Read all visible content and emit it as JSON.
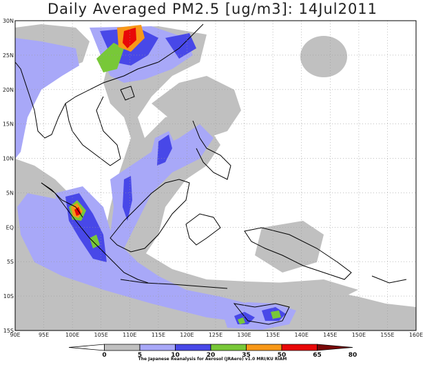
{
  "title": "Daily Averaged PM2.5 [ug/m3]: 14Jul2011",
  "credit": "The Japanese Reanalysis for Aerosol (JRAero) v1.0 MRI/KU RIAM",
  "map": {
    "lon_range": [
      90,
      160
    ],
    "lat_range": [
      -15,
      30
    ],
    "lon_ticks": [
      "90E",
      "95E",
      "100E",
      "105E",
      "110E",
      "115E",
      "120E",
      "125E",
      "130E",
      "135E",
      "140E",
      "145E",
      "150E",
      "155E",
      "160E"
    ],
    "lat_ticks": [
      "30N",
      "25N",
      "20N",
      "15N",
      "10N",
      "5N",
      "EQ",
      "5S",
      "10S",
      "15S"
    ]
  },
  "colorbar": {
    "levels": [
      "0",
      "5",
      "10",
      "20",
      "35",
      "50",
      "65",
      "80"
    ],
    "colors": [
      "#ffffff",
      "#c0c0c0",
      "#a8a8f8",
      "#4848e8",
      "#78c838",
      "#f89818",
      "#e80808",
      "#780808"
    ]
  }
}
